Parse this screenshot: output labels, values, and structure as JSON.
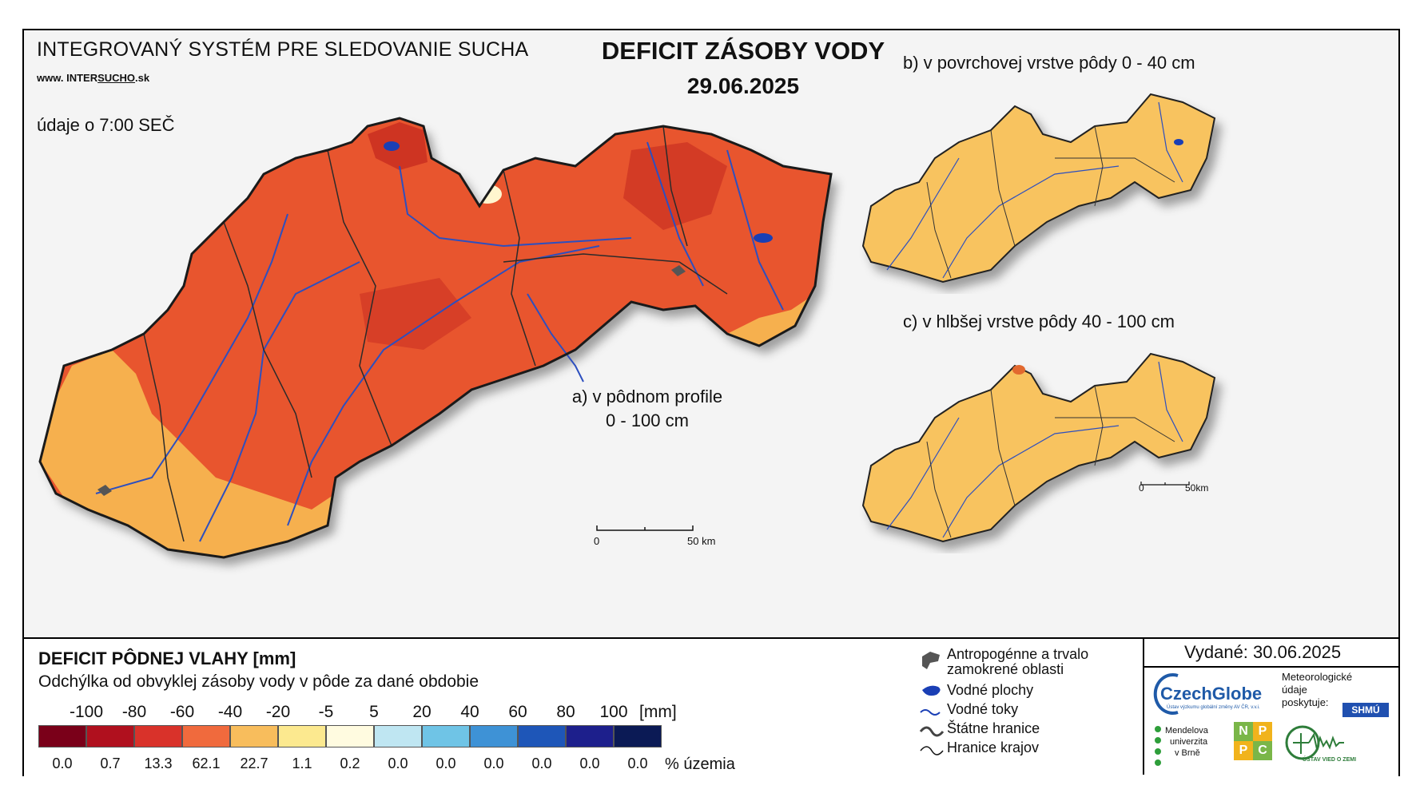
{
  "header": {
    "system_title": "INTEGROVANÝ SYSTÉM PRE SLEDOVANIE SUCHA",
    "website_prefix": "www. INTER",
    "website_mid": "SUCHO",
    "website_suffix": ".sk",
    "data_note": "údaje o 7:00 SEČ",
    "main_title": "DEFICIT ZÁSOBY VODY",
    "date": "29.06.2025"
  },
  "maps": {
    "main_label_line1": "a) v pôdnom profile",
    "main_label_line2": "0 - 100 cm",
    "top_right_label": "b) v povrchovej vrstve pôdy 0 - 40 cm",
    "bottom_right_label": "c) v hlbšej vrstve pôdy 40 - 100 cm",
    "main_scale": {
      "start": "0",
      "end": "50 km"
    },
    "inset_scale": {
      "start": "0",
      "end": "50km"
    },
    "colors": {
      "main_fill": "#e8552e",
      "main_dark": "#c52a1f",
      "main_light": "#f6b04e",
      "inset_fill": "#f8c35e",
      "rivers": "#2d4fbf",
      "borders": "#222222"
    }
  },
  "legend": {
    "title": "DEFICIT PÔDNEJ VLAHY [mm]",
    "subtitle": "Odchýlka od obvyklej zásoby vody v pôde za dané obdobie",
    "ticks": [
      "-100",
      "-80",
      "-60",
      "-40",
      "-20",
      "-5",
      "5",
      "20",
      "40",
      "60",
      "80",
      "100"
    ],
    "unit": "[mm]",
    "classes": [
      {
        "color": "#7a0019",
        "pct": "0.0"
      },
      {
        "color": "#b0101e",
        "pct": "0.7"
      },
      {
        "color": "#d9322a",
        "pct": "13.3"
      },
      {
        "color": "#f06a3d",
        "pct": "62.1"
      },
      {
        "color": "#f8bd5c",
        "pct": "22.7"
      },
      {
        "color": "#fce98f",
        "pct": "1.1"
      },
      {
        "color": "#fffbe0",
        "pct": "0.2"
      },
      {
        "color": "#bfe6f2",
        "pct": "0.0"
      },
      {
        "color": "#6fc4e6",
        "pct": "0.0"
      },
      {
        "color": "#3e92d6",
        "pct": "0.0"
      },
      {
        "color": "#1e56b8",
        "pct": "0.0"
      },
      {
        "color": "#1d1f8c",
        "pct": "0.0"
      },
      {
        "color": "#0b1a55",
        "pct": "0.0"
      }
    ],
    "pct_unit": "% územia",
    "symbols": [
      {
        "label_line1": "Antropogénne a trvalo",
        "label_line2": "zamokrené oblasti",
        "icon": "urban-area-icon"
      },
      {
        "label_line1": "Vodné plochy",
        "icon": "water-body-icon"
      },
      {
        "label_line1": "Vodné toky",
        "icon": "river-icon"
      },
      {
        "label_line1": "Štátne hranice",
        "icon": "state-border-icon"
      },
      {
        "label_line1": "Hranice krajov",
        "icon": "region-border-icon"
      }
    ]
  },
  "issuer": {
    "issued": "Vydané: 30.06.2025",
    "czechglobe": "CzechGlobe",
    "czechglobe_sub": "Ústav výzkumu globální změny AV ČR, v.v.i.",
    "met_line1": "Meteorologické",
    "met_line2": "údaje",
    "met_line3": "poskytuje:",
    "shmu": "SHMÚ",
    "mendel_line1": "Mendelova",
    "mendel_line2": "univerzita",
    "mendel_line3": "v Brně",
    "nppc": [
      "N",
      "P",
      "P",
      "C"
    ],
    "uvz": "ÚSTAV VIED O ZEMI"
  }
}
